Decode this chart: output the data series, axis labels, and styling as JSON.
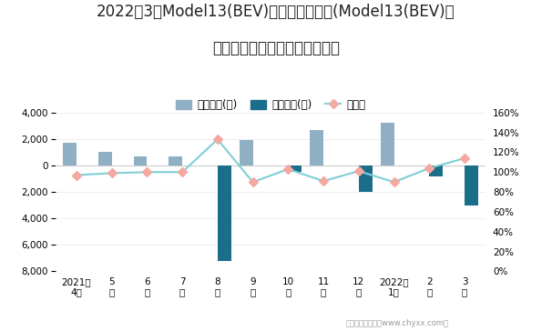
{
  "title_line1": "2022年3月Model13(BEV)旗下最畅销轿车(Model13(BEV)）",
  "title_line2": "近一年库存情况及产销率统计图",
  "x_labels": [
    "2021年\n4月",
    "5\n月",
    "6\n月",
    "7\n月",
    "8\n月",
    "9\n月",
    "10\n月",
    "11\n月",
    "12\n月",
    "2022年\n1月",
    "2\n月",
    "3\n月"
  ],
  "jiaya_values": [
    1700,
    1000,
    700,
    700,
    0,
    1900,
    0,
    2700,
    0,
    3200,
    0,
    0
  ],
  "qingcang_values": [
    0,
    0,
    0,
    0,
    -7200,
    0,
    -500,
    0,
    -2000,
    0,
    -800,
    -3000
  ],
  "chanxiao_rate": [
    0.97,
    0.99,
    1.0,
    1.0,
    1.33,
    0.9,
    1.03,
    0.91,
    1.01,
    0.9,
    1.04,
    1.14
  ],
  "jiaya_color": "#8fafc4",
  "qingcang_color": "#1a6e8a",
  "chanxiao_line_color": "#7ecfd6",
  "chanxiao_marker_color": "#f4a8a0",
  "ylim_left": [
    -8000,
    4000
  ],
  "ylim_right": [
    0.0,
    1.6
  ],
  "yticks_left": [
    -8000,
    -6000,
    -4000,
    -2000,
    0,
    2000,
    4000
  ],
  "yticks_right": [
    0.0,
    0.2,
    0.4,
    0.6,
    0.8,
    1.0,
    1.2,
    1.4,
    1.6
  ],
  "legend_labels": [
    "积压库存(辆)",
    "清仓库存(辆)",
    "产销率"
  ],
  "footer": "制图：智研咨询（www.chyxx.com）",
  "background_color": "#ffffff",
  "bar_width": 0.38
}
